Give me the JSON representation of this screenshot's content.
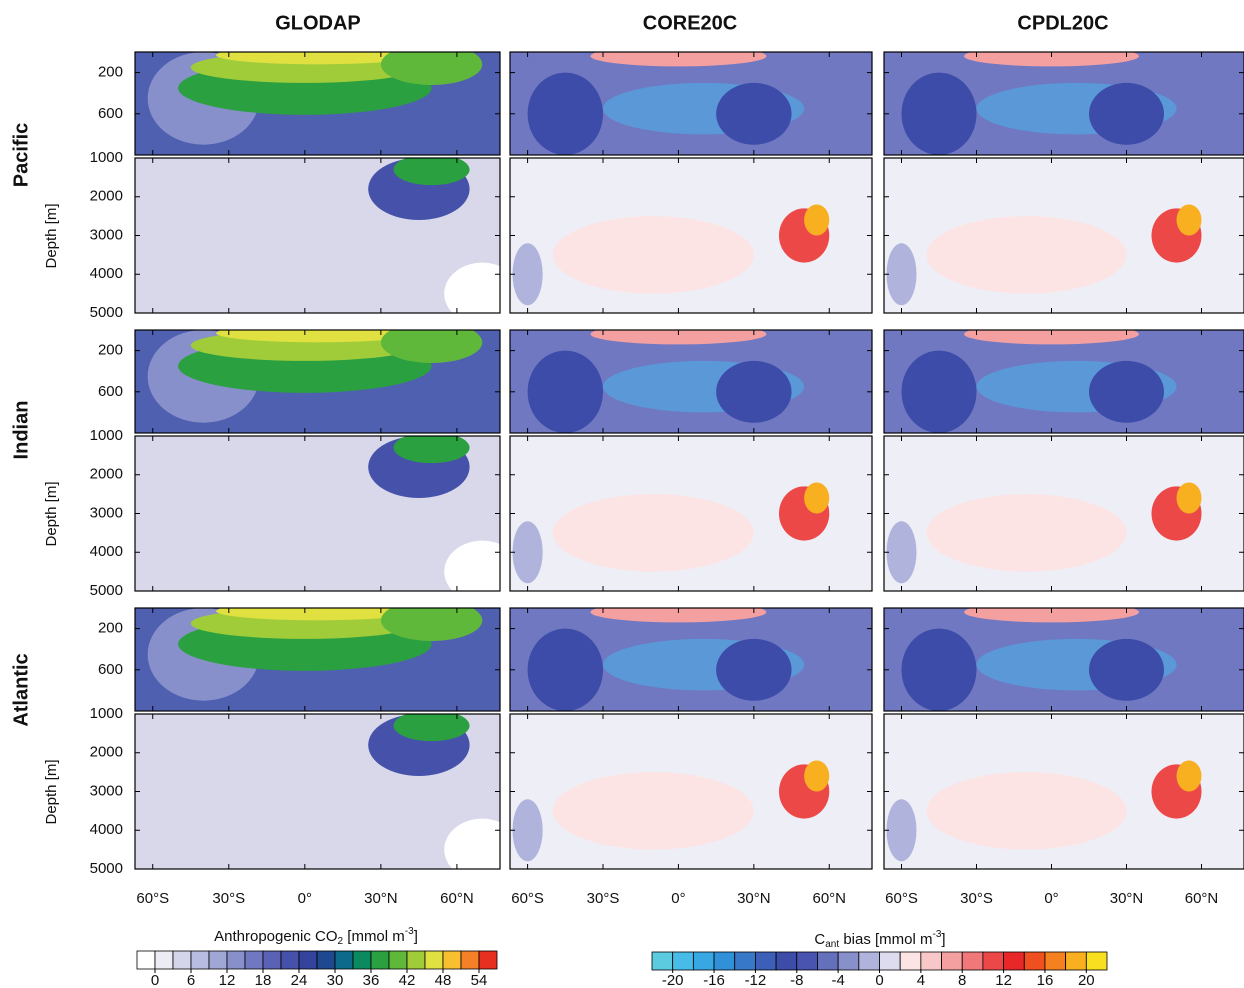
{
  "columns": [
    "GLODAP",
    "CORE20C",
    "CPDL20C"
  ],
  "rows": [
    "Pacific",
    "Indian",
    "Atlantic"
  ],
  "depth_label": "Depth [m]",
  "upper_ylim": [
    0,
    1000
  ],
  "upper_yticks": [
    200,
    600
  ],
  "lower_ylim": [
    1000,
    5000
  ],
  "lower_yticks": [
    1000,
    2000,
    3000,
    4000,
    5000
  ],
  "xlim": [
    -67,
    77
  ],
  "xticks": [
    {
      "value": -60,
      "label": "60°S"
    },
    {
      "value": -30,
      "label": "30°S"
    },
    {
      "value": 0,
      "label": "0°"
    },
    {
      "value": 30,
      "label": "30°N"
    },
    {
      "value": 60,
      "label": "60°N"
    }
  ],
  "colorbars": [
    {
      "title": {
        "a": "Anthropogenic CO",
        "sub": "2",
        "b": " [mmol m",
        "sup": "-3",
        "c": "]"
      },
      "lim": [
        -3,
        57
      ],
      "ticks": [
        0,
        6,
        12,
        18,
        24,
        30,
        36,
        42,
        48,
        54
      ],
      "colors": [
        "#ffffff",
        "#ececf4",
        "#d4d4ea",
        "#b8bce0",
        "#a0a6d6",
        "#8890cc",
        "#7078c2",
        "#5a62b6",
        "#4652aa",
        "#34449c",
        "#1e4890",
        "#0e6a8a",
        "#0a8a5e",
        "#2aa040",
        "#60b83a",
        "#a0cc3a",
        "#e0e040",
        "#f8c030",
        "#f48028",
        "#e83020"
      ]
    },
    {
      "title": {
        "a": "C",
        "sub": "ant",
        "b": " bias [mmol m",
        "sup": "-3",
        "c": "]"
      },
      "lim": [
        -22,
        22
      ],
      "ticks": [
        -20,
        -16,
        -12,
        -8,
        -4,
        0,
        4,
        8,
        12,
        16,
        20
      ],
      "colors": [
        "#5ccbe0",
        "#48bce8",
        "#38a8e4",
        "#3090d8",
        "#3878c8",
        "#3c60b8",
        "#3c4ca8",
        "#4854b0",
        "#6470bc",
        "#8890cc",
        "#b0b4dc",
        "#dcdcee",
        "#fde4e4",
        "#f8c8c8",
        "#f4a0a0",
        "#f07878",
        "#ec4848",
        "#e82828",
        "#f05020",
        "#f48020",
        "#f8b020",
        "#f8e020"
      ]
    }
  ]
}
